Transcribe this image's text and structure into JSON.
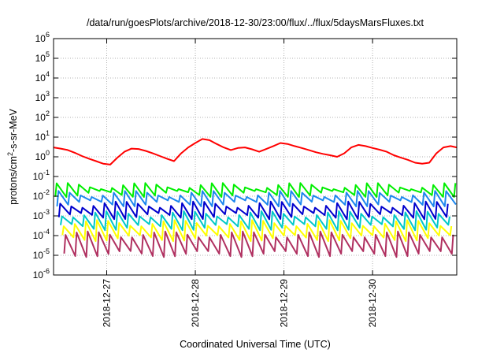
{
  "chart_data": {
    "type": "line",
    "title": "/data/run/goesPlots/archive/2018-12-30/23:00/flux/../flux/5daysMarsFluxes.txt",
    "xlabel": "Coordinated Universal Time (UTC)",
    "ylabel": "protons/cm2-s-sr-MeV",
    "ylabel_parts": [
      "protons/cm",
      "2",
      "-s-sr-MeV"
    ],
    "y_scale": "log",
    "ylim": [
      1e-06,
      1000000.0
    ],
    "y_ticks": [
      {
        "value": 1e-06,
        "base": "10",
        "exp": "-6"
      },
      {
        "value": 1e-05,
        "base": "10",
        "exp": "-5"
      },
      {
        "value": 0.0001,
        "base": "10",
        "exp": "-4"
      },
      {
        "value": 0.001,
        "base": "10",
        "exp": "-3"
      },
      {
        "value": 0.01,
        "base": "10",
        "exp": "-2"
      },
      {
        "value": 0.1,
        "base": "10",
        "exp": "-1"
      },
      {
        "value": 1,
        "base": "10",
        "exp": "0"
      },
      {
        "value": 10,
        "base": "10",
        "exp": "1"
      },
      {
        "value": 100,
        "base": "10",
        "exp": "2"
      },
      {
        "value": 1000,
        "base": "10",
        "exp": "3"
      },
      {
        "value": 10000,
        "base": "10",
        "exp": "4"
      },
      {
        "value": 100000,
        "base": "10",
        "exp": "5"
      },
      {
        "value": 1000000,
        "base": "10",
        "exp": "6"
      }
    ],
    "x_unit": "days since 2018-12-26 00:00 UTC",
    "xlim": [
      0.4,
      4.95
    ],
    "x_ticks": [
      {
        "value": 1,
        "label": "2018-12-27"
      },
      {
        "value": 2,
        "label": "2018-12-28"
      },
      {
        "value": 3,
        "label": "2018-12-29"
      },
      {
        "value": 4,
        "label": "2018-12-30"
      }
    ],
    "grid": true,
    "legend": "none",
    "series": [
      {
        "color": "#ff0000",
        "x": [
          0.4,
          0.48,
          0.56,
          0.64,
          0.72,
          0.8,
          0.88,
          0.96,
          1.04,
          1.12,
          1.2,
          1.28,
          1.36,
          1.44,
          1.52,
          1.6,
          1.68,
          1.76,
          1.84,
          1.92,
          2,
          2.08,
          2.16,
          2.24,
          2.32,
          2.4,
          2.48,
          2.56,
          2.64,
          2.72,
          2.8,
          2.88,
          2.96,
          3.04,
          3.12,
          3.2,
          3.28,
          3.36,
          3.44,
          3.52,
          3.6,
          3.68,
          3.76,
          3.84,
          3.92,
          4,
          4.08,
          4.16,
          4.24,
          4.32,
          4.4,
          4.48,
          4.56,
          4.64,
          4.72,
          4.8,
          4.88,
          4.95
        ],
        "values": [
          3,
          2.6,
          2.2,
          1.6,
          1.1,
          0.8,
          0.6,
          0.45,
          0.4,
          0.9,
          1.8,
          2.6,
          2.5,
          2,
          1.5,
          1.1,
          0.8,
          0.6,
          1.5,
          3,
          5,
          8,
          7,
          4.5,
          3,
          2.2,
          2.8,
          3,
          2.4,
          1.8,
          2.5,
          3.5,
          5,
          4.5,
          3.5,
          2.8,
          2.2,
          1.7,
          1.4,
          1.2,
          1.0,
          1.5,
          3,
          4,
          3.5,
          2.8,
          2.3,
          1.8,
          1.2,
          0.9,
          0.7,
          0.5,
          0.45,
          0.5,
          1.5,
          3,
          3.5,
          3
        ]
      },
      {
        "color": "#00ee00",
        "peak": 0.035,
        "trough": 0.012
      },
      {
        "color": "#1c86ee",
        "peak": 0.014,
        "trough": 0.004
      },
      {
        "color": "#0000cd",
        "peak": 0.004,
        "trough": 0.0009
      },
      {
        "color": "#00c8c8",
        "peak": 0.0013,
        "trough": 0.00025
      },
      {
        "color": "#ffff00",
        "peak": 0.00045,
        "trough": 7e-05
      },
      {
        "color": "#b03060",
        "peak": 0.00012,
        "trough": 1.1e-05
      }
    ]
  }
}
